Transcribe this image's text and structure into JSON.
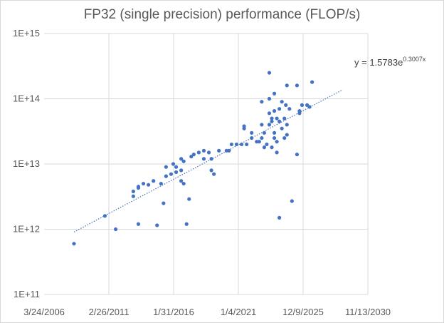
{
  "chart_data": {
    "type": "scatter",
    "title": "FP32 (single precision) performance (FLOP/s)",
    "yscale": "log",
    "ylim": [
      100000000000.0,
      1000000000000000.0
    ],
    "xlim_days": [
      38800,
      47800
    ],
    "x_ticks": [
      {
        "value": 38800,
        "label": "3/24/2006"
      },
      {
        "value": 40600,
        "label": "2/26/2011"
      },
      {
        "value": 42400,
        "label": "1/31/2016"
      },
      {
        "value": 44200,
        "label": "1/4/2021"
      },
      {
        "value": 46000,
        "label": "12/9/2025"
      },
      {
        "value": 47800,
        "label": "11/13/2030"
      }
    ],
    "y_ticks": [
      {
        "value": 100000000000.0,
        "label": "1E+11"
      },
      {
        "value": 1000000000000.0,
        "label": "1E+12"
      },
      {
        "value": 10000000000000.0,
        "label": "1E+13"
      },
      {
        "value": 100000000000000.0,
        "label": "1E+14"
      },
      {
        "value": 1000000000000000.0,
        "label": "1E+15"
      }
    ],
    "trendline": {
      "type": "exponential",
      "equation_base": "y = 1.5783e",
      "equation_exponent": "0.3007x",
      "x_range": [
        39630,
        47100
      ]
    },
    "points": [
      [
        39630,
        600000000000.0
      ],
      [
        40490,
        1600000000000.0
      ],
      [
        40790,
        1000000000000.0
      ],
      [
        41420,
        1200000000000.0
      ],
      [
        41940,
        1150000000000.0
      ],
      [
        42120,
        2500000000000.0
      ],
      [
        42760,
        1200000000000.0
      ],
      [
        42830,
        2900000000000.0
      ],
      [
        41280,
        3200000000000.0
      ],
      [
        41280,
        3800000000000.0
      ],
      [
        41420,
        4500000000000.0
      ],
      [
        41420,
        4300000000000.0
      ],
      [
        41560,
        5000000000000.0
      ],
      [
        41700,
        4800000000000.0
      ],
      [
        41840,
        5500000000000.0
      ],
      [
        42050,
        5000000000000.0
      ],
      [
        42190,
        6500000000000.0
      ],
      [
        42330,
        7000000000000.0
      ],
      [
        42470,
        7500000000000.0
      ],
      [
        42190,
        9000000000000.0
      ],
      [
        42390,
        10000000000000.0
      ],
      [
        42470,
        9000000000000.0
      ],
      [
        42610,
        12000000000000.0
      ],
      [
        42610,
        8000000000000.0
      ],
      [
        42680,
        11000000000000.0
      ],
      [
        42890,
        13000000000000.0
      ],
      [
        42960,
        14000000000000.0
      ],
      [
        43100,
        15000000000000.0
      ],
      [
        43240,
        16000000000000.0
      ],
      [
        43240,
        12000000000000.0
      ],
      [
        43380,
        15000000000000.0
      ],
      [
        43450,
        12000000000000.0
      ],
      [
        43450,
        8000000000000.0
      ],
      [
        43520,
        7000000000000.0
      ],
      [
        43660,
        16000000000000.0
      ],
      [
        42610,
        5500000000000.0
      ],
      [
        42680,
        5000000000000.0
      ],
      [
        43940,
        16000000000000.0
      ],
      [
        43870,
        16000000000000.0
      ],
      [
        44010,
        20000000000000.0
      ],
      [
        44150,
        20000000000000.0
      ],
      [
        44290,
        20000000000000.0
      ],
      [
        44360,
        35000000000000.0
      ],
      [
        44360,
        38000000000000.0
      ],
      [
        44430,
        20000000000000.0
      ],
      [
        44570,
        25000000000000.0
      ],
      [
        44570,
        30000000000000.0
      ],
      [
        44710,
        22000000000000.0
      ],
      [
        44780,
        22000000000000.0
      ],
      [
        44850,
        25000000000000.0
      ],
      [
        44850,
        40000000000000.0
      ],
      [
        44850,
        90000000000000.0
      ],
      [
        44920,
        18000000000000.0
      ],
      [
        44920,
        30000000000000.0
      ],
      [
        44990,
        20000000000000.0
      ],
      [
        45060,
        40000000000000.0
      ],
      [
        45060,
        60000000000000.0
      ],
      [
        45060,
        100000000000000.0
      ],
      [
        45060,
        250000000000000.0
      ],
      [
        45130,
        50000000000000.0
      ],
      [
        45130,
        45000000000000.0
      ],
      [
        45130,
        18000000000000.0
      ],
      [
        45200,
        65000000000000.0
      ],
      [
        45200,
        120000000000000.0
      ],
      [
        45200,
        30000000000000.0
      ],
      [
        45200,
        25000000000000.0
      ],
      [
        45270,
        50000000000000.0
      ],
      [
        45270,
        22000000000000.0
      ],
      [
        45270,
        15000000000000.0
      ],
      [
        45340,
        70000000000000.0
      ],
      [
        45340,
        45000000000000.0
      ],
      [
        45340,
        1500000000000.0
      ],
      [
        45410,
        90000000000000.0
      ],
      [
        45410,
        35000000000000.0
      ],
      [
        45480,
        50000000000000.0
      ],
      [
        45480,
        25000000000000.0
      ],
      [
        45550,
        160000000000000.0
      ],
      [
        45550,
        40000000000000.0
      ],
      [
        45550,
        28000000000000.0
      ],
      [
        45620,
        70000000000000.0
      ],
      [
        45690,
        2700000000000.0
      ],
      [
        45830,
        14000000000000.0
      ],
      [
        45830,
        160000000000000.0
      ],
      [
        45900,
        60000000000000.0
      ],
      [
        45900,
        65000000000000.0
      ],
      [
        45970,
        80000000000000.0
      ],
      [
        46110,
        80000000000000.0
      ],
      [
        46180,
        75000000000000.0
      ],
      [
        46250,
        180000000000000.0
      ],
      [
        45520,
        80000000000000.0
      ]
    ]
  }
}
